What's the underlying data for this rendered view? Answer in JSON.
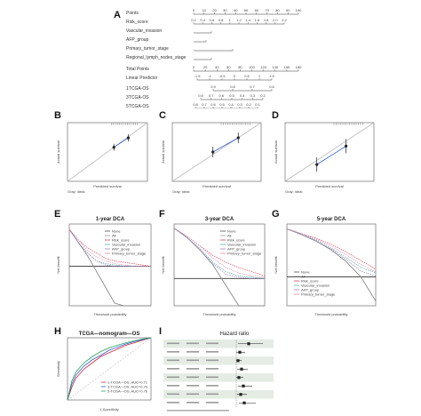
{
  "panel_labels": [
    "A",
    "B",
    "C",
    "D",
    "E",
    "F",
    "G",
    "H",
    "I"
  ],
  "nomogram": {
    "rows": [
      "Points",
      "Risk_score",
      "Vascular_invasion",
      "AFP_group",
      "Primary_tumor_stage",
      "Regional_lymph_nodes_stage",
      "Total Points",
      "Linear Predictor",
      "1TCGA-OS",
      "3TCGA-OS",
      "5TCGA-OS"
    ],
    "points_ticks": [
      "0",
      "10",
      "20",
      "30",
      "40",
      "50",
      "60",
      "70",
      "80",
      "90",
      "100"
    ],
    "risk_ticks": [
      "0.2",
      "0.4",
      "0.6",
      "0.8",
      "1",
      "1.2",
      "1.4",
      "1.6",
      "1.8",
      "2.0",
      "2.2"
    ],
    "total_ticks": [
      "0",
      "20",
      "40",
      "60",
      "80",
      "100",
      "120",
      "140",
      "160",
      "180"
    ],
    "lp_ticks": [
      "-1.5",
      "-1",
      "-0.5",
      "0",
      "0.5",
      "1",
      "1.5"
    ],
    "os1_ticks": [
      "0.9",
      "0.8",
      "0.7",
      "0.6"
    ],
    "os3_ticks": [
      "0.8",
      "0.7",
      "0.6",
      "0.5",
      "0.4",
      "0.3",
      "0.2"
    ],
    "os5_ticks": [
      "0.8",
      "0.7",
      "0.6",
      "0.5",
      "0.4",
      "0.3",
      "0.2",
      "0.1"
    ]
  },
  "calibration": {
    "xlabel": "Predicted survival",
    "ylabel": "Actual survival",
    "footnote": "Gray: ideal"
  },
  "dca": {
    "titles": [
      "1-year DCA",
      "3-year DCA",
      "5-year DCA"
    ],
    "xlabel": "Threshold probability",
    "ylabel": "Net benefit",
    "legend": [
      "None",
      "All",
      "Risk_score",
      "Vascular_invasion",
      "AFP_group",
      "Primary_tumor_stage"
    ]
  },
  "roc": {
    "title": "TCGA—nomogram—OS",
    "xlabel": "1-Specificity",
    "ylabel": "Sensitivity",
    "legend": [
      "1-TCGA—OS, AUC=0.71",
      "3-TCGA—OS, AUC=0.73",
      "5-TCGA—OS, AUC=0.76"
    ]
  },
  "forest": {
    "title": "Hazard ratio"
  },
  "colors": {
    "red": "#d7263d",
    "blue": "#2e5fd8",
    "green": "#22a35a",
    "teal": "#3aa7a0",
    "gray": "#888888",
    "pink": "#e07aa0",
    "purple": "#8e6cc2",
    "dark": "#333333"
  },
  "chart_data": [
    {
      "type": "line",
      "panel": "B",
      "x": [
        0.79,
        0.88
      ],
      "y": [
        0.79,
        0.87
      ],
      "xlim": [
        0.5,
        1.0
      ],
      "ylim": [
        0.5,
        1.0
      ],
      "xlabel": "Predicted survival",
      "ylabel": "Actual survival"
    },
    {
      "type": "line",
      "panel": "C",
      "x": [
        0.52,
        0.72
      ],
      "y": [
        0.55,
        0.72
      ],
      "xlim": [
        0.2,
        0.9
      ],
      "ylim": [
        0.2,
        0.9
      ],
      "xlabel": "Predicted survival",
      "ylabel": "Actual survival"
    },
    {
      "type": "line",
      "panel": "D",
      "x": [
        0.45,
        0.68
      ],
      "y": [
        0.4,
        0.62
      ],
      "xlim": [
        0.2,
        0.9
      ],
      "ylim": [
        0.2,
        0.9
      ],
      "xlabel": "Predicted survival",
      "ylabel": "Actual survival"
    },
    {
      "type": "line",
      "panel": "E",
      "title": "1-year DCA",
      "xlabel": "Threshold probability",
      "ylabel": "Net benefit",
      "x": [
        0,
        0.05,
        0.1,
        0.15,
        0.2,
        0.25,
        0.3,
        0.35,
        0.4,
        0.45
      ],
      "series": [
        {
          "name": "None",
          "values": [
            0,
            0,
            0,
            0,
            0,
            0,
            0,
            0,
            0,
            0
          ]
        },
        {
          "name": "All",
          "values": [
            0.14,
            0.09,
            0.04,
            -0.02,
            -0.08,
            -0.14,
            -0.2,
            -0.27,
            -0.35,
            -0.4
          ]
        },
        {
          "name": "Risk_score",
          "values": [
            0.14,
            0.1,
            0.07,
            0.05,
            0.03,
            0.02,
            0.015,
            0.01,
            0.005,
            0
          ]
        },
        {
          "name": "Vascular_invasion",
          "values": [
            0.14,
            0.09,
            0.05,
            0.02,
            0.01,
            0.005,
            0,
            0,
            0,
            0
          ]
        },
        {
          "name": "AFP_group",
          "values": [
            0.14,
            0.09,
            0.05,
            0.02,
            0.005,
            0,
            0,
            0,
            0,
            0
          ]
        },
        {
          "name": "Primary_tumor_stage",
          "values": [
            0.14,
            0.1,
            0.06,
            0.035,
            0.02,
            0.01,
            0.005,
            0,
            0,
            0
          ]
        }
      ]
    },
    {
      "type": "line",
      "panel": "F",
      "title": "3-year DCA",
      "xlabel": "Threshold probability",
      "ylabel": "Net benefit",
      "x": [
        0,
        0.1,
        0.2,
        0.3,
        0.4,
        0.5,
        0.6,
        0.7
      ],
      "series": [
        {
          "name": "None",
          "values": [
            0,
            0,
            0,
            0,
            0,
            0,
            0,
            0
          ]
        },
        {
          "name": "All",
          "values": [
            0.37,
            0.3,
            0.21,
            0.1,
            -0.05,
            -0.25,
            -0.55,
            -0.9
          ]
        },
        {
          "name": "Risk_score",
          "values": [
            0.37,
            0.31,
            0.24,
            0.17,
            0.12,
            0.08,
            0.05,
            0.02
          ]
        },
        {
          "name": "Vascular_invasion",
          "values": [
            0.37,
            0.3,
            0.22,
            0.12,
            0.05,
            0.02,
            0.01,
            0
          ]
        },
        {
          "name": "AFP_group",
          "values": [
            0.37,
            0.3,
            0.21,
            0.11,
            0.03,
            0.01,
            0,
            0
          ]
        },
        {
          "name": "Primary_tumor_stage",
          "values": [
            0.37,
            0.31,
            0.24,
            0.15,
            0.08,
            0.04,
            0.02,
            0.01
          ]
        }
      ]
    },
    {
      "type": "line",
      "panel": "G",
      "title": "5-year DCA",
      "xlabel": "Threshold probability",
      "ylabel": "Net benefit",
      "x": [
        0,
        0.1,
        0.2,
        0.3,
        0.4,
        0.5,
        0.6
      ],
      "series": [
        {
          "name": "None",
          "values": [
            0,
            0,
            0,
            0,
            0,
            0,
            0
          ]
        },
        {
          "name": "All",
          "values": [
            0.5,
            0.44,
            0.37,
            0.28,
            0.16,
            0,
            -0.25
          ]
        },
        {
          "name": "Risk_score",
          "values": [
            0.5,
            0.45,
            0.4,
            0.34,
            0.26,
            0.17,
            0.08
          ]
        },
        {
          "name": "Vascular_invasion",
          "values": [
            0.5,
            0.45,
            0.38,
            0.3,
            0.2,
            0.1,
            0.04
          ]
        },
        {
          "name": "AFP_group",
          "values": [
            0.5,
            0.44,
            0.37,
            0.29,
            0.18,
            0.06,
            0.01
          ]
        },
        {
          "name": "Primary_tumor_stage",
          "values": [
            0.5,
            0.45,
            0.39,
            0.32,
            0.23,
            0.13,
            0.05
          ]
        }
      ]
    },
    {
      "type": "line",
      "panel": "H",
      "title": "TCGA—nomogram—OS",
      "xlabel": "1-Specificity",
      "ylabel": "Sensitivity",
      "xlim": [
        0,
        1
      ],
      "ylim": [
        0,
        1
      ],
      "series": [
        {
          "name": "1-TCGA—OS, AUC=0.71",
          "x": [
            0,
            0.05,
            0.1,
            0.2,
            0.3,
            0.4,
            0.5,
            0.6,
            0.7,
            0.8,
            0.9,
            1
          ],
          "values": [
            0,
            0.2,
            0.35,
            0.5,
            0.6,
            0.7,
            0.76,
            0.82,
            0.88,
            0.92,
            0.96,
            1
          ]
        },
        {
          "name": "3-TCGA—OS, AUC=0.73",
          "x": [
            0,
            0.05,
            0.1,
            0.2,
            0.3,
            0.4,
            0.5,
            0.6,
            0.7,
            0.8,
            0.9,
            1
          ],
          "values": [
            0,
            0.25,
            0.4,
            0.55,
            0.65,
            0.72,
            0.8,
            0.85,
            0.9,
            0.94,
            0.97,
            1
          ]
        },
        {
          "name": "5-TCGA—OS, AUC=0.76",
          "x": [
            0,
            0.05,
            0.1,
            0.2,
            0.3,
            0.4,
            0.5,
            0.6,
            0.7,
            0.8,
            0.9,
            1
          ],
          "values": [
            0,
            0.3,
            0.45,
            0.6,
            0.7,
            0.78,
            0.84,
            0.88,
            0.92,
            0.95,
            0.98,
            1
          ]
        }
      ]
    }
  ]
}
